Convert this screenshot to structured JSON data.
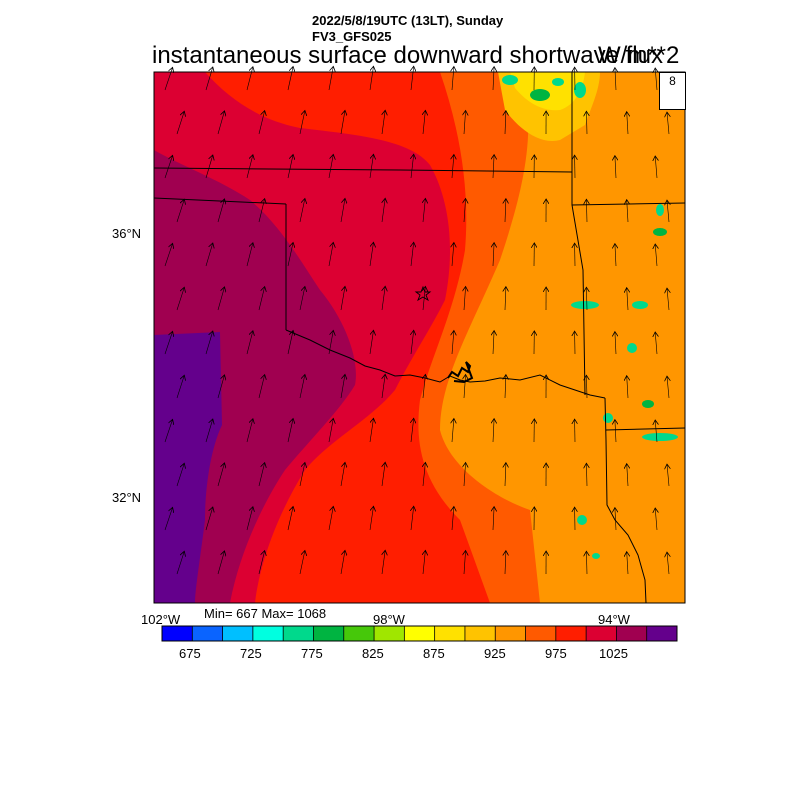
{
  "titles": {
    "datetime": "2022/5/8/19UTC (13LT), Sunday",
    "model": "FV3_GFS025",
    "field": "instantaneous surface downward shortwave flux",
    "units": "W/m**2"
  },
  "axes": {
    "lat_ticks": [
      {
        "label": "36°N",
        "lat": 36
      },
      {
        "label": "32°N",
        "lat": 32
      }
    ],
    "lon_ticks": [
      {
        "label": "102°W",
        "lon": -102
      },
      {
        "label": "98°W",
        "lon": -98
      },
      {
        "label": "94°W",
        "lon": -94
      }
    ]
  },
  "stats": {
    "text": "Min= 667 Max= 1068",
    "min": 667,
    "max": 1068
  },
  "reference_vector": {
    "value": "8"
  },
  "colorbar": {
    "colors": [
      "#0000ff",
      "#0a64ff",
      "#00bfff",
      "#00ffe0",
      "#00d98c",
      "#00b441",
      "#46c80a",
      "#a0e600",
      "#ffff00",
      "#ffe100",
      "#ffc300",
      "#ff9600",
      "#ff5a00",
      "#ff1e00",
      "#dc0032",
      "#a00050",
      "#64008c"
    ],
    "labels": [
      "675",
      "725",
      "775",
      "825",
      "875",
      "925",
      "975",
      "1025"
    ]
  },
  "map_colors": {
    "purple": "#64008c",
    "maroon": "#a00050",
    "crimson": "#dc0032",
    "red": "#ff1e00",
    "red_orange": "#ff5a00",
    "orange": "#ff9600",
    "amber": "#ffc300",
    "yellow": "#ffe100",
    "green": "#00d98c",
    "teal": "#00b441"
  }
}
